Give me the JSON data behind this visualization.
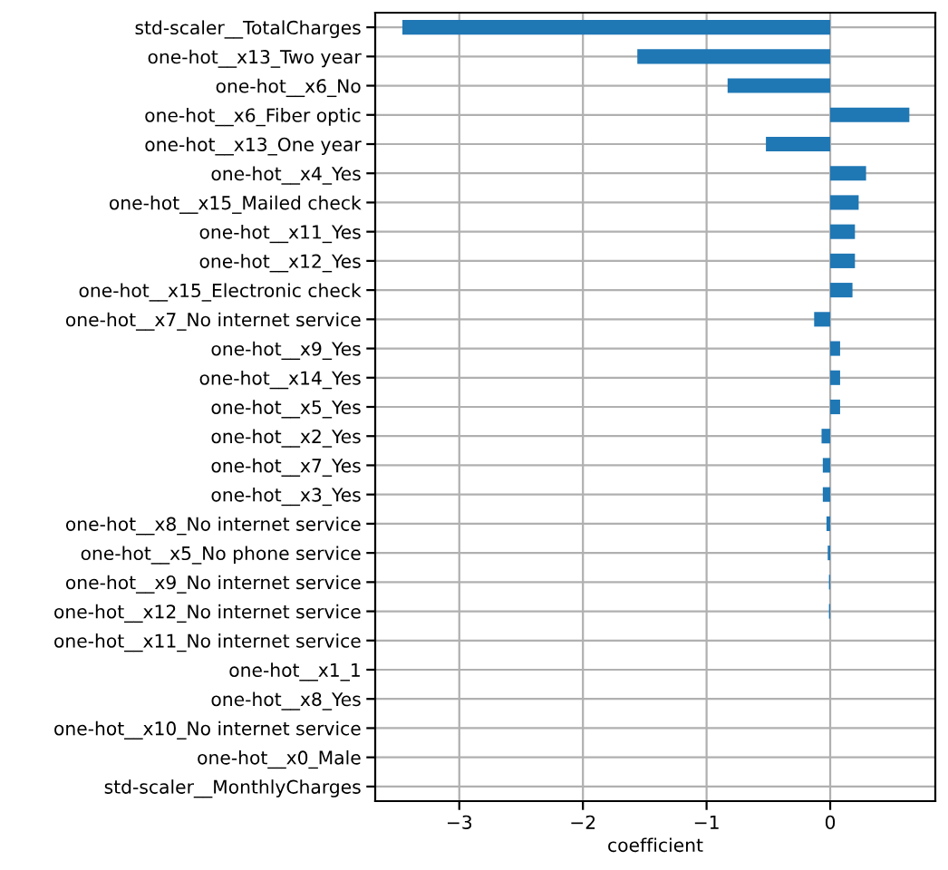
{
  "chart_data": {
    "type": "bar",
    "orientation": "horizontal",
    "xlabel": "coefficient",
    "categories": [
      "std-scaler__TotalCharges",
      "one-hot__x13_Two year",
      "one-hot__x6_No",
      "one-hot__x6_Fiber optic",
      "one-hot__x13_One year",
      "one-hot__x4_Yes",
      "one-hot__x15_Mailed check",
      "one-hot__x11_Yes",
      "one-hot__x12_Yes",
      "one-hot__x15_Electronic check",
      "one-hot__x7_No internet service",
      "one-hot__x9_Yes",
      "one-hot__x14_Yes",
      "one-hot__x5_Yes",
      "one-hot__x2_Yes",
      "one-hot__x7_Yes",
      "one-hot__x3_Yes",
      "one-hot__x8_No internet service",
      "one-hot__x5_No phone service",
      "one-hot__x9_No internet service",
      "one-hot__x12_No internet service",
      "one-hot__x11_No internet service",
      "one-hot__x1_1",
      "one-hot__x8_Yes",
      "one-hot__x10_No internet service",
      "one-hot__x0_Male",
      "std-scaler__MonthlyCharges"
    ],
    "series": [
      {
        "color": "#1f77b4",
        "values": [
          -3.46,
          -1.56,
          -0.83,
          0.64,
          -0.52,
          0.29,
          0.23,
          0.2,
          0.2,
          0.18,
          -0.13,
          0.08,
          0.08,
          0.08,
          -0.07,
          -0.06,
          -0.06,
          -0.03,
          -0.02,
          -0.01,
          -0.01,
          0,
          0,
          0,
          0,
          0,
          0
        ]
      }
    ],
    "xlim": [
      -3.68,
      0.85
    ],
    "xticks": [
      {
        "value": -3,
        "label": "−3"
      },
      {
        "value": -2,
        "label": "−2"
      },
      {
        "value": -1,
        "label": "−1"
      },
      0
    ],
    "grid": true,
    "legend": false
  }
}
